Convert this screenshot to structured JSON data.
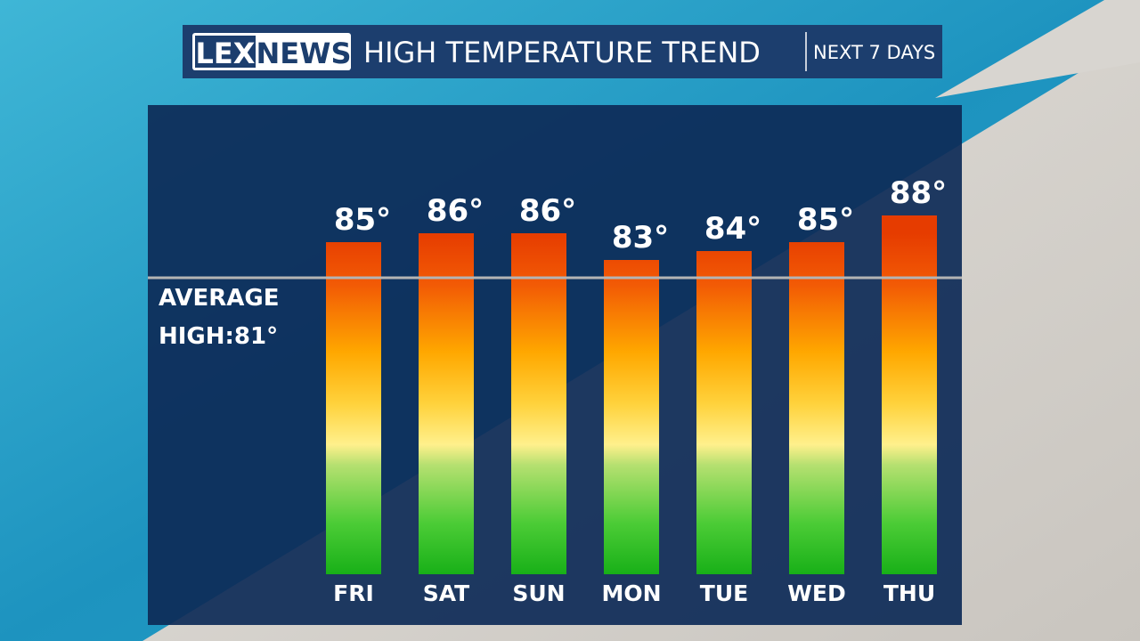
{
  "brand": {
    "part1": "LEX",
    "part2": "NEWS"
  },
  "chart_data": {
    "type": "bar",
    "title": "HIGH TEMPERATURE TREND",
    "subtitle": "NEXT 7 DAYS",
    "categories": [
      "FRI",
      "SAT",
      "SUN",
      "MON",
      "TUE",
      "WED",
      "THU"
    ],
    "values": [
      85,
      86,
      86,
      83,
      84,
      85,
      88
    ],
    "value_labels": [
      "85°",
      "86°",
      "86°",
      "83°",
      "84°",
      "85°",
      "88°"
    ],
    "ylim": [
      47.7,
      100.4
    ],
    "average": 81,
    "average_label": [
      "AVERAGE",
      "HIGH:81°"
    ]
  }
}
